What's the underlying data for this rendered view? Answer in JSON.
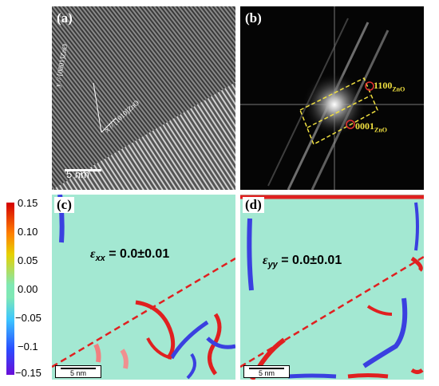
{
  "panels": {
    "a": {
      "label": "(a)",
      "scale": "5 nm",
      "axis_y": "y // [0001]ZnO",
      "axis_x": "x // [1010]ZnO"
    },
    "b": {
      "label": "(b)",
      "spot1": "1100",
      "spot1_sub": "ZnO",
      "spot2": "0001",
      "spot2_sub": "ZnO"
    },
    "c": {
      "label": "(c)",
      "eq_sym": "ε",
      "eq_sub": "xx",
      "eq_val": " = 0.0±0.01",
      "scale": "5 nm"
    },
    "d": {
      "label": "(d)",
      "eq_sym": "ε",
      "eq_sub": "yy",
      "eq_val": " = 0.0±0.01",
      "scale": "5 nm"
    }
  },
  "colorbar": {
    "ticks": [
      "0.15",
      "0.10",
      "0.05",
      "0.00",
      "−0.05",
      "−0.1",
      "−0.15"
    ]
  },
  "colors": {
    "interface_line": "#e02020",
    "fft_box": "#f0e040",
    "fft_circle": "#e03030"
  }
}
